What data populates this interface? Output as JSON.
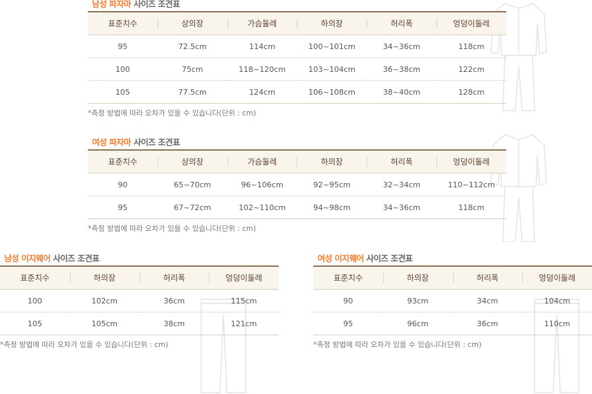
{
  "tables": [
    {
      "title_highlight": "남성 파자마",
      "title_rest": " 사이즈 조견표",
      "headers": [
        "표준치수",
        "상의장",
        "가슴둘레",
        "하의장",
        "허리폭",
        "엉덩이둘레"
      ],
      "rows": [
        [
          "95",
          "72.5cm",
          "114cm",
          "100~101cm",
          "34~36cm",
          "118cm"
        ],
        [
          "100",
          "75cm",
          "118~120cm",
          "103~104cm",
          "36~38cm",
          "122cm"
        ],
        [
          "105",
          "77.5cm",
          "124cm",
          "106~108cm",
          "38~40cm",
          "128cm"
        ]
      ],
      "note": "*측정 방법에 따라 오차가 있을 수 있습니다(단위 : cm)"
    },
    {
      "title_highlight": "여성 파자마",
      "title_rest": " 사이즈 조견표",
      "headers": [
        "표준치수",
        "상의장",
        "가슴둘레",
        "하의장",
        "허리폭",
        "엉덩이둘레"
      ],
      "rows": [
        [
          "90",
          "65~70cm",
          "96~106cm",
          "92~95cm",
          "32~34cm",
          "110~112cm"
        ],
        [
          "95",
          "67~72cm",
          "102~110cm",
          "94~98cm",
          "34~36cm",
          "118cm"
        ]
      ],
      "note": "*측정 방법에 따라 오차가 있을 수 있습니다(단위 : cm)"
    },
    {
      "title_highlight": "남성 이지웨어",
      "title_rest": " 사이즈 조견표",
      "headers": [
        "표준치수",
        "하의장",
        "허리폭",
        "엉덩이둘레"
      ],
      "rows": [
        [
          "100",
          "102cm",
          "36cm",
          "115cm"
        ],
        [
          "105",
          "105cm",
          "38cm",
          "121cm"
        ]
      ],
      "note": "*측정 방법에 따라 오차가 있을 수 있습니다(단위 : cm)"
    },
    {
      "title_highlight": "여성 이지웨어",
      "title_rest": " 사이즈 조견표",
      "headers": [
        "표준치수",
        "하의장",
        "허리폭",
        "엉덩이둘레"
      ],
      "rows": [
        [
          "90",
          "93cm",
          "34cm",
          "104cm"
        ],
        [
          "95",
          "96cm",
          "36cm",
          "110cm"
        ]
      ],
      "note": "*측정 방법에 따라 오차가 있을 수 있습니다(단위 : cm)"
    }
  ],
  "colors": {
    "accent": "#f47c30",
    "header_bg": "#f8f3ea",
    "header_border": "#8b7659"
  }
}
